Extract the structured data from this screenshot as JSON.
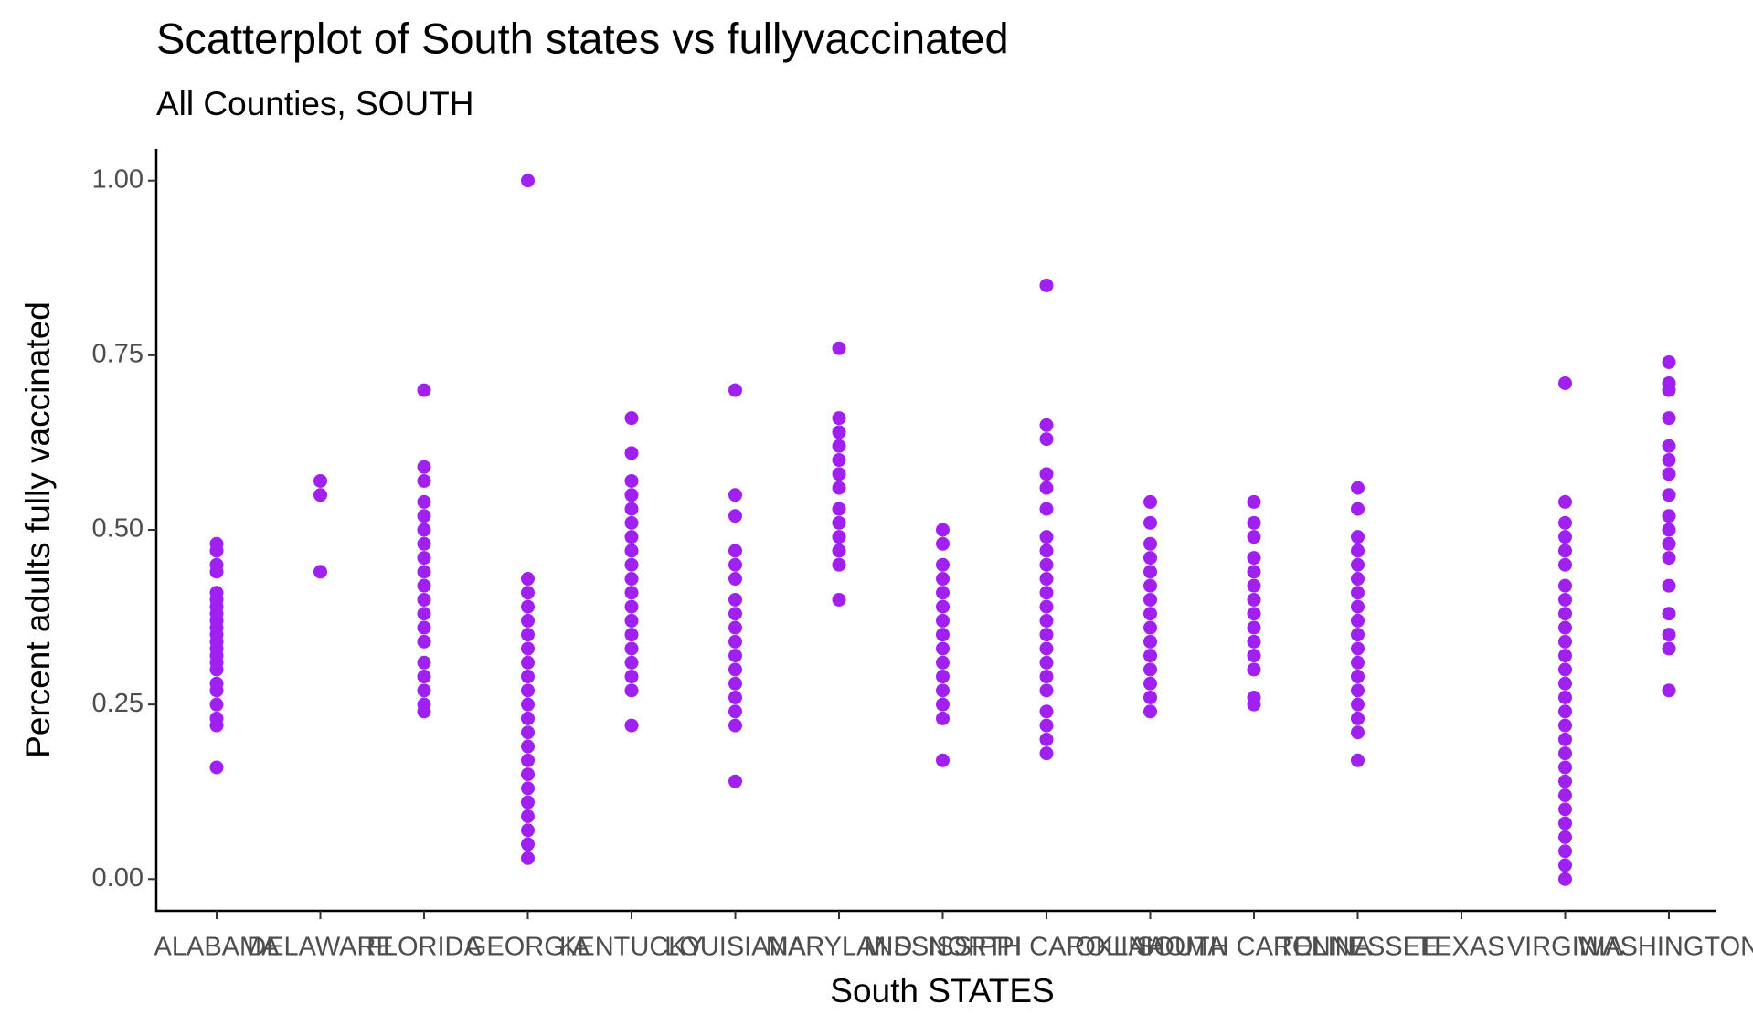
{
  "chart_data": {
    "type": "scatter",
    "title": "Scatterplot of South states vs  fullyvaccinated",
    "subtitle": "All Counties, SOUTH",
    "x_label": "South STATES",
    "y_label": "Percent adults fully vaccinated",
    "color": "#a020f0",
    "categories": [
      "ALABAMA",
      "DELAWARE",
      "FLORIDA",
      "GEORGIA",
      "KENTUCKY",
      "LOUISIANA",
      "MARYLAND",
      "MISSISSIPPI",
      "NORTH CAROLINA",
      "OKLAHOMA",
      "SOUTH CAROLINA",
      "TENNESSEE",
      "TEXAS",
      "VIRGINIA",
      "WASHINGTON"
    ],
    "values": [
      [
        0.16,
        0.22,
        0.23,
        0.25,
        0.27,
        0.28,
        0.3,
        0.31,
        0.32,
        0.33,
        0.34,
        0.35,
        0.36,
        0.37,
        0.38,
        0.39,
        0.4,
        0.41,
        0.44,
        0.45,
        0.47,
        0.48
      ],
      [
        0.44,
        0.55,
        0.57
      ],
      [
        0.24,
        0.25,
        0.27,
        0.29,
        0.31,
        0.34,
        0.36,
        0.38,
        0.4,
        0.42,
        0.44,
        0.46,
        0.48,
        0.5,
        0.52,
        0.54,
        0.57,
        0.59,
        0.7
      ],
      [
        0.03,
        0.05,
        0.07,
        0.09,
        0.11,
        0.13,
        0.15,
        0.17,
        0.19,
        0.21,
        0.23,
        0.25,
        0.27,
        0.29,
        0.31,
        0.33,
        0.35,
        0.37,
        0.39,
        0.41,
        0.43,
        1.0
      ],
      [
        0.22,
        0.27,
        0.29,
        0.31,
        0.33,
        0.35,
        0.37,
        0.39,
        0.41,
        0.43,
        0.45,
        0.47,
        0.49,
        0.51,
        0.53,
        0.55,
        0.57,
        0.61,
        0.66
      ],
      [
        0.14,
        0.22,
        0.24,
        0.26,
        0.28,
        0.3,
        0.32,
        0.34,
        0.36,
        0.38,
        0.4,
        0.43,
        0.45,
        0.47,
        0.52,
        0.55,
        0.7
      ],
      [
        0.4,
        0.45,
        0.47,
        0.49,
        0.51,
        0.53,
        0.56,
        0.58,
        0.6,
        0.62,
        0.64,
        0.66,
        0.76
      ],
      [
        0.17,
        0.23,
        0.25,
        0.27,
        0.29,
        0.31,
        0.33,
        0.35,
        0.37,
        0.39,
        0.41,
        0.43,
        0.45,
        0.48,
        0.5
      ],
      [
        0.18,
        0.2,
        0.22,
        0.24,
        0.27,
        0.29,
        0.31,
        0.33,
        0.35,
        0.37,
        0.39,
        0.41,
        0.43,
        0.45,
        0.47,
        0.49,
        0.53,
        0.56,
        0.58,
        0.63,
        0.65,
        0.85
      ],
      [
        0.24,
        0.26,
        0.28,
        0.3,
        0.32,
        0.34,
        0.36,
        0.38,
        0.4,
        0.42,
        0.44,
        0.46,
        0.48,
        0.51,
        0.54
      ],
      [
        0.25,
        0.26,
        0.3,
        0.32,
        0.34,
        0.36,
        0.38,
        0.4,
        0.42,
        0.44,
        0.46,
        0.49,
        0.51,
        0.54
      ],
      [
        0.17,
        0.21,
        0.23,
        0.25,
        0.27,
        0.29,
        0.31,
        0.33,
        0.35,
        0.37,
        0.39,
        0.41,
        0.43,
        0.45,
        0.47,
        0.49,
        0.53,
        0.56
      ],
      [],
      [
        0.0,
        0.02,
        0.04,
        0.06,
        0.08,
        0.1,
        0.12,
        0.14,
        0.16,
        0.18,
        0.2,
        0.22,
        0.24,
        0.26,
        0.28,
        0.3,
        0.32,
        0.34,
        0.36,
        0.38,
        0.4,
        0.42,
        0.45,
        0.47,
        0.49,
        0.51,
        0.54,
        0.71
      ],
      [
        0.27,
        0.33,
        0.35,
        0.38,
        0.42,
        0.46,
        0.48,
        0.5,
        0.52,
        0.55,
        0.58,
        0.6,
        0.62,
        0.66,
        0.7,
        0.71,
        0.74
      ]
    ],
    "ylim": [
      -0.0454,
      1.0454
    ],
    "yticks": [
      {
        "value": 0,
        "label": "0.00"
      },
      {
        "value": 0.25,
        "label": "0.25"
      },
      {
        "value": 0.5,
        "label": "0.50"
      },
      {
        "value": 0.75,
        "label": "0.75"
      },
      {
        "value": 1,
        "label": "1.00"
      }
    ],
    "grid": false
  }
}
